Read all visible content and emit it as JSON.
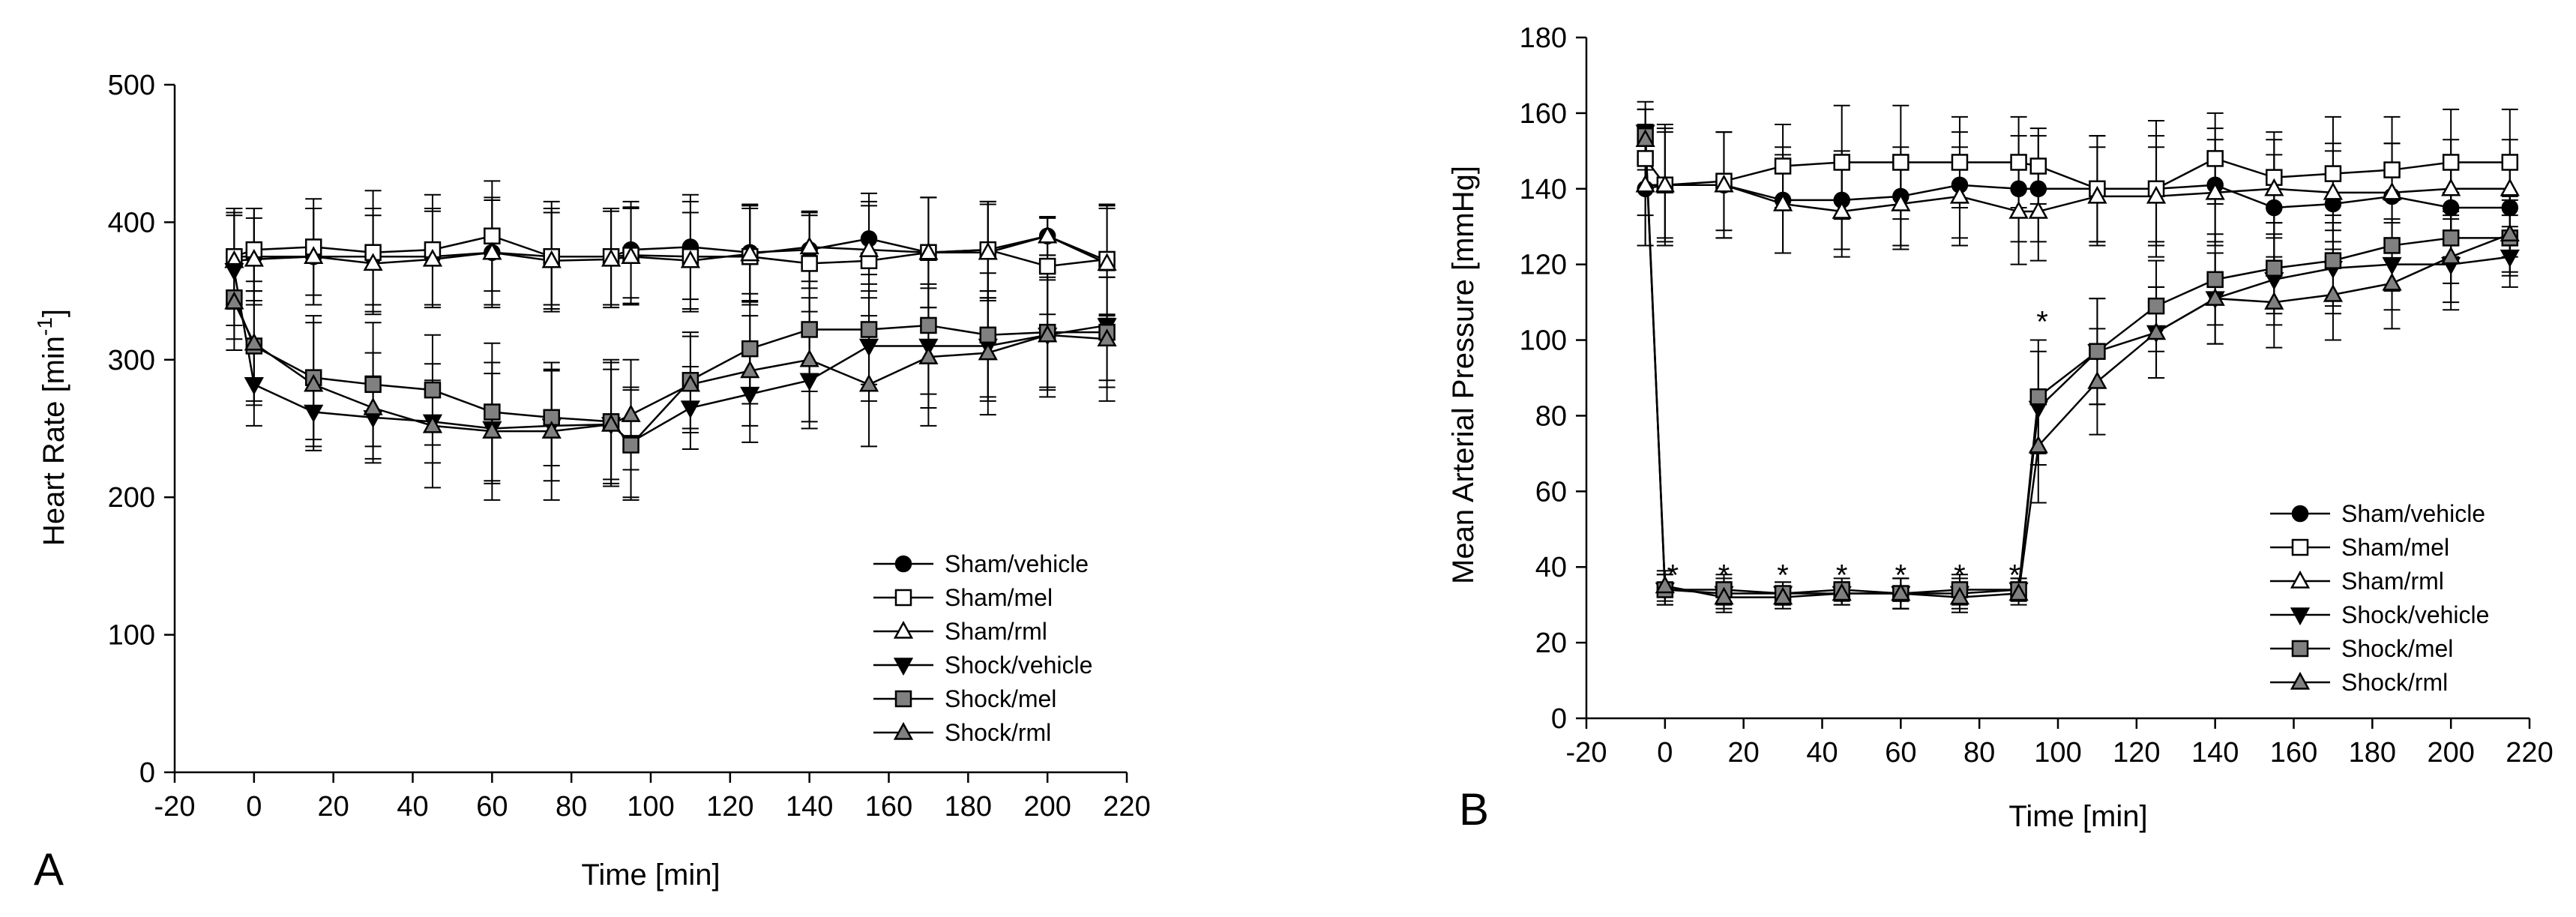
{
  "chart_data": [
    {
      "type": "line",
      "panel_letter": "A",
      "title": "",
      "xlabel": "Time [min]",
      "ylabel": "Heart Rate [min",
      "ylabel_sup": "-1",
      "ylabel_end": "]",
      "xlim": [
        -20,
        220
      ],
      "ylim": [
        0,
        500
      ],
      "xticks": [
        -20,
        0,
        20,
        40,
        60,
        80,
        100,
        120,
        140,
        160,
        180,
        200,
        220
      ],
      "yticks": [
        0,
        100,
        200,
        300,
        400,
        500
      ],
      "x": [
        -5,
        0,
        15,
        30,
        45,
        60,
        75,
        90,
        95,
        110,
        125,
        140,
        155,
        170,
        185,
        200,
        215
      ],
      "legend_position": "bottom-right",
      "series": [
        {
          "name": "Sham/vehicle",
          "marker": "circle",
          "fill": "#000000",
          "values": [
            375,
            375,
            375,
            375,
            375,
            378,
            375,
            375,
            380,
            382,
            378,
            380,
            388,
            378,
            380,
            390,
            372
          ],
          "errors": [
            35,
            35,
            35,
            35,
            35,
            38,
            35,
            35,
            35,
            38,
            35,
            28,
            33,
            40,
            35,
            14,
            40
          ]
        },
        {
          "name": "Sham/mel",
          "marker": "square",
          "fill": "#ffffff",
          "values": [
            375,
            380,
            382,
            378,
            380,
            390,
            375,
            375,
            376,
            375,
            375,
            370,
            372,
            378,
            380,
            368,
            373
          ],
          "errors": [
            35,
            30,
            35,
            45,
            40,
            40,
            40,
            35,
            35,
            40,
            35,
            35,
            40,
            40,
            35,
            35,
            40
          ]
        },
        {
          "name": "Sham/rml",
          "marker": "triangle-up",
          "fill": "#ffffff",
          "values": [
            372,
            373,
            375,
            370,
            373,
            378,
            372,
            373,
            375,
            372,
            377,
            382,
            380,
            378,
            378,
            390,
            370
          ],
          "errors": [
            35,
            30,
            35,
            35,
            35,
            40,
            35,
            35,
            35,
            35,
            35,
            25,
            35,
            40,
            35,
            14,
            40
          ]
        },
        {
          "name": "Shock/vehicle",
          "marker": "triangle-down",
          "fill": "#000000",
          "values": [
            365,
            282,
            262,
            258,
            255,
            250,
            252,
            253,
            240,
            265,
            275,
            285,
            310,
            310,
            310,
            318,
            325
          ],
          "errors": [
            40,
            30,
            28,
            30,
            30,
            40,
            40,
            40,
            40,
            30,
            35,
            35,
            40,
            45,
            40,
            40,
            40
          ]
        },
        {
          "name": "Shock/mel",
          "marker": "square",
          "fill": "#808080",
          "values": [
            345,
            310,
            287,
            282,
            278,
            262,
            258,
            255,
            238,
            285,
            308,
            322,
            322,
            325,
            318,
            320,
            320
          ],
          "errors": [
            30,
            40,
            45,
            45,
            40,
            50,
            35,
            45,
            40,
            35,
            40,
            45,
            40,
            50,
            45,
            40,
            40
          ]
        },
        {
          "name": "Shock/rml",
          "marker": "triangle-up",
          "fill": "#808080",
          "values": [
            342,
            312,
            282,
            265,
            252,
            248,
            248,
            253,
            260,
            282,
            292,
            300,
            282,
            302,
            305,
            318,
            315
          ],
          "errors": [
            35,
            45,
            45,
            40,
            45,
            50,
            50,
            45,
            40,
            35,
            40,
            45,
            45,
            50,
            45,
            45,
            45
          ]
        }
      ]
    },
    {
      "type": "line",
      "panel_letter": "B",
      "title": "",
      "xlabel": "Time [min]",
      "ylabel": "Mean Arterial Pressure [mmHg]",
      "xlim": [
        -20,
        220
      ],
      "ylim": [
        0,
        180
      ],
      "xticks": [
        -20,
        0,
        20,
        40,
        60,
        80,
        100,
        120,
        140,
        160,
        180,
        200,
        220
      ],
      "yticks": [
        0,
        20,
        40,
        60,
        80,
        100,
        120,
        140,
        160,
        180
      ],
      "x": [
        -5,
        0,
        15,
        30,
        45,
        60,
        75,
        90,
        95,
        110,
        125,
        140,
        155,
        170,
        185,
        200,
        215
      ],
      "legend_position": "bottom-right",
      "significance": {
        "symbol": "*",
        "x": [
          2,
          15,
          30,
          45,
          60,
          75,
          89,
          96
        ],
        "y": [
          38,
          38,
          38,
          38,
          38,
          38,
          38,
          105
        ]
      },
      "series": [
        {
          "name": "Sham/vehicle",
          "marker": "circle",
          "fill": "#000000",
          "values": [
            140,
            141,
            141,
            137,
            137,
            138,
            141,
            140,
            140,
            140,
            140,
            141,
            135,
            136,
            138,
            135,
            135
          ],
          "errors": [
            15,
            15,
            14,
            14,
            13,
            13,
            14,
            14,
            14,
            14,
            14,
            15,
            14,
            14,
            14,
            13,
            13
          ]
        },
        {
          "name": "Sham/mel",
          "marker": "square",
          "fill": "#ffffff",
          "values": [
            148,
            141,
            142,
            146,
            147,
            147,
            147,
            147,
            146,
            140,
            140,
            148,
            143,
            144,
            145,
            147,
            147
          ],
          "errors": [
            15,
            16,
            13,
            11,
            15,
            15,
            12,
            12,
            10,
            14,
            18,
            12,
            12,
            15,
            14,
            14,
            14
          ]
        },
        {
          "name": "Sham/rml",
          "marker": "triangle-up",
          "fill": "#ffffff",
          "values": [
            141,
            141,
            141,
            136,
            134,
            136,
            138,
            134,
            134,
            138,
            138,
            139,
            140,
            139,
            139,
            140,
            140
          ],
          "errors": [
            16,
            14,
            14,
            13,
            12,
            12,
            13,
            14,
            13,
            13,
            13,
            14,
            13,
            13,
            13,
            13,
            13
          ]
        },
        {
          "name": "Shock/vehicle",
          "marker": "triangle-down",
          "fill": "#000000",
          "values": [
            155,
            34,
            33,
            33,
            33,
            33,
            33,
            34,
            82,
            97,
            102,
            111,
            116,
            119,
            120,
            120,
            122
          ],
          "errors": [
            6,
            4,
            4,
            3,
            3,
            4,
            4,
            3,
            15,
            14,
            12,
            12,
            12,
            12,
            12,
            12,
            8
          ]
        },
        {
          "name": "Shock/mel",
          "marker": "square",
          "fill": "#808080",
          "values": [
            154,
            34,
            34,
            33,
            34,
            33,
            34,
            34,
            85,
            97,
            109,
            116,
            119,
            121,
            125,
            127,
            127
          ],
          "errors": [
            7,
            4,
            4,
            3,
            3,
            4,
            4,
            3,
            15,
            14,
            12,
            12,
            12,
            12,
            12,
            12,
            10
          ]
        },
        {
          "name": "Shock/rml",
          "marker": "triangle-up",
          "fill": "#808080",
          "values": [
            153,
            35,
            32,
            32,
            33,
            33,
            32,
            33,
            72,
            89,
            102,
            111,
            110,
            112,
            115,
            122,
            128
          ],
          "errors": [
            8,
            4,
            4,
            3,
            3,
            4,
            4,
            3,
            15,
            14,
            12,
            12,
            12,
            12,
            12,
            12,
            10
          ]
        }
      ]
    }
  ]
}
